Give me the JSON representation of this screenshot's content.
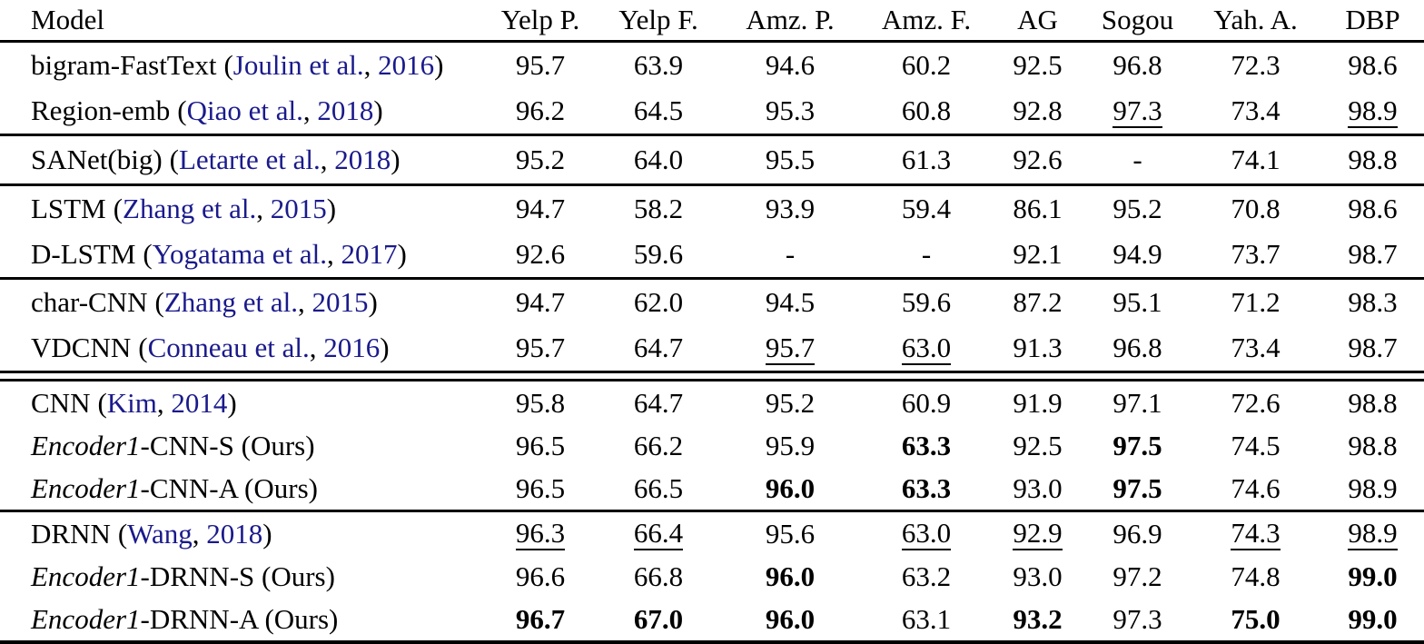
{
  "punct": {
    "open": "(",
    "sep": ", ",
    "close": ")"
  },
  "table": {
    "columns": [
      "Model",
      "Yelp P.",
      "Yelp F.",
      "Amz. P.",
      "Amz. F.",
      "AG",
      "Sogou",
      "Yah. A.",
      "DBP"
    ],
    "header_rule": "single",
    "groups": [
      {
        "rule_after": "single",
        "rows": [
          {
            "model": {
              "name": "bigram-FastText",
              "cite": {
                "authors": "Joulin et al.",
                "year": "2016"
              }
            },
            "values": [
              {
                "v": "95.7"
              },
              {
                "v": "63.9"
              },
              {
                "v": "94.6"
              },
              {
                "v": "60.2"
              },
              {
                "v": "92.5"
              },
              {
                "v": "96.8"
              },
              {
                "v": "72.3"
              },
              {
                "v": "98.6"
              }
            ]
          },
          {
            "model": {
              "name": "Region-emb",
              "cite": {
                "authors": "Qiao et al.",
                "year": "2018"
              }
            },
            "values": [
              {
                "v": "96.2"
              },
              {
                "v": "64.5"
              },
              {
                "v": "95.3"
              },
              {
                "v": "60.8"
              },
              {
                "v": "92.8"
              },
              {
                "v": "97.3",
                "u": true
              },
              {
                "v": "73.4"
              },
              {
                "v": "98.9",
                "u": true
              }
            ]
          }
        ]
      },
      {
        "rule_after": "single",
        "rows": [
          {
            "model": {
              "name": "SANet(big)",
              "cite": {
                "authors": "Letarte et al.",
                "year": "2018"
              }
            },
            "values": [
              {
                "v": "95.2"
              },
              {
                "v": "64.0"
              },
              {
                "v": "95.5"
              },
              {
                "v": "61.3"
              },
              {
                "v": "92.6"
              },
              {
                "v": "-"
              },
              {
                "v": "74.1"
              },
              {
                "v": "98.8"
              }
            ]
          }
        ]
      },
      {
        "rule_after": "single",
        "rows": [
          {
            "model": {
              "name": "LSTM",
              "cite": {
                "authors": "Zhang et al.",
                "year": "2015"
              }
            },
            "values": [
              {
                "v": "94.7"
              },
              {
                "v": "58.2"
              },
              {
                "v": "93.9"
              },
              {
                "v": "59.4"
              },
              {
                "v": "86.1"
              },
              {
                "v": "95.2"
              },
              {
                "v": "70.8"
              },
              {
                "v": "98.6"
              }
            ]
          },
          {
            "model": {
              "name": "D-LSTM",
              "cite": {
                "authors": "Yogatama et al.",
                "year": "2017"
              }
            },
            "values": [
              {
                "v": "92.6"
              },
              {
                "v": "59.6"
              },
              {
                "v": "-"
              },
              {
                "v": "-"
              },
              {
                "v": "92.1"
              },
              {
                "v": "94.9"
              },
              {
                "v": "73.7"
              },
              {
                "v": "98.7"
              }
            ]
          }
        ]
      },
      {
        "rule_after": "double",
        "rows": [
          {
            "model": {
              "name": "char-CNN",
              "cite": {
                "authors": "Zhang et al.",
                "year": "2015"
              }
            },
            "values": [
              {
                "v": "94.7"
              },
              {
                "v": "62.0"
              },
              {
                "v": "94.5"
              },
              {
                "v": "59.6"
              },
              {
                "v": "87.2"
              },
              {
                "v": "95.1"
              },
              {
                "v": "71.2"
              },
              {
                "v": "98.3"
              }
            ]
          },
          {
            "model": {
              "name": "VDCNN",
              "cite": {
                "authors": "Conneau et al.",
                "year": "2016"
              }
            },
            "values": [
              {
                "v": "95.7"
              },
              {
                "v": "64.7"
              },
              {
                "v": "95.7",
                "u": true
              },
              {
                "v": "63.0",
                "u": true
              },
              {
                "v": "91.3"
              },
              {
                "v": "96.8"
              },
              {
                "v": "73.4"
              },
              {
                "v": "98.7"
              }
            ]
          }
        ]
      },
      {
        "rule_after": "single",
        "rows": [
          {
            "model": {
              "name": "CNN",
              "cite": {
                "authors": "Kim",
                "year": "2014"
              }
            },
            "values": [
              {
                "v": "95.8"
              },
              {
                "v": "64.7"
              },
              {
                "v": "95.2"
              },
              {
                "v": "60.9"
              },
              {
                "v": "91.9"
              },
              {
                "v": "97.1"
              },
              {
                "v": "72.6"
              },
              {
                "v": "98.8"
              }
            ]
          },
          {
            "model": {
              "italic": "Encoder1",
              "name": "-CNN-S (Ours)"
            },
            "values": [
              {
                "v": "96.5"
              },
              {
                "v": "66.2"
              },
              {
                "v": "95.9"
              },
              {
                "v": "63.3",
                "b": true
              },
              {
                "v": "92.5"
              },
              {
                "v": "97.5",
                "b": true
              },
              {
                "v": "74.5"
              },
              {
                "v": "98.8"
              }
            ]
          },
          {
            "model": {
              "italic": "Encoder1",
              "name": "-CNN-A (Ours)"
            },
            "values": [
              {
                "v": "96.5"
              },
              {
                "v": "66.5"
              },
              {
                "v": "96.0",
                "b": true
              },
              {
                "v": "63.3",
                "b": true
              },
              {
                "v": "93.0"
              },
              {
                "v": "97.5",
                "b": true
              },
              {
                "v": "74.6"
              },
              {
                "v": "98.9"
              }
            ]
          }
        ]
      },
      {
        "rule_after": "thick",
        "rows": [
          {
            "model": {
              "name": "DRNN",
              "cite": {
                "authors": "Wang",
                "year": "2018"
              }
            },
            "values": [
              {
                "v": "96.3",
                "u": true
              },
              {
                "v": "66.4",
                "u": true
              },
              {
                "v": "95.6"
              },
              {
                "v": "63.0",
                "u": true
              },
              {
                "v": "92.9",
                "u": true
              },
              {
                "v": "96.9"
              },
              {
                "v": "74.3",
                "u": true
              },
              {
                "v": "98.9",
                "u": true
              }
            ]
          },
          {
            "model": {
              "italic": "Encoder1",
              "name": "-DRNN-S (Ours)"
            },
            "values": [
              {
                "v": "96.6"
              },
              {
                "v": "66.8"
              },
              {
                "v": "96.0",
                "b": true
              },
              {
                "v": "63.2"
              },
              {
                "v": "93.0"
              },
              {
                "v": "97.2"
              },
              {
                "v": "74.8"
              },
              {
                "v": "99.0",
                "b": true
              }
            ]
          },
          {
            "model": {
              "italic": "Encoder1",
              "name": "-DRNN-A (Ours)"
            },
            "values": [
              {
                "v": "96.7",
                "b": true
              },
              {
                "v": "67.0",
                "b": true
              },
              {
                "v": "96.0",
                "b": true
              },
              {
                "v": "63.1"
              },
              {
                "v": "93.2",
                "b": true
              },
              {
                "v": "97.3"
              },
              {
                "v": "75.0",
                "b": true
              },
              {
                "v": "99.0",
                "b": true
              }
            ]
          }
        ]
      }
    ]
  },
  "colors": {
    "citation": "#1a1a8c",
    "text": "#000000",
    "background": "#ffffff"
  }
}
